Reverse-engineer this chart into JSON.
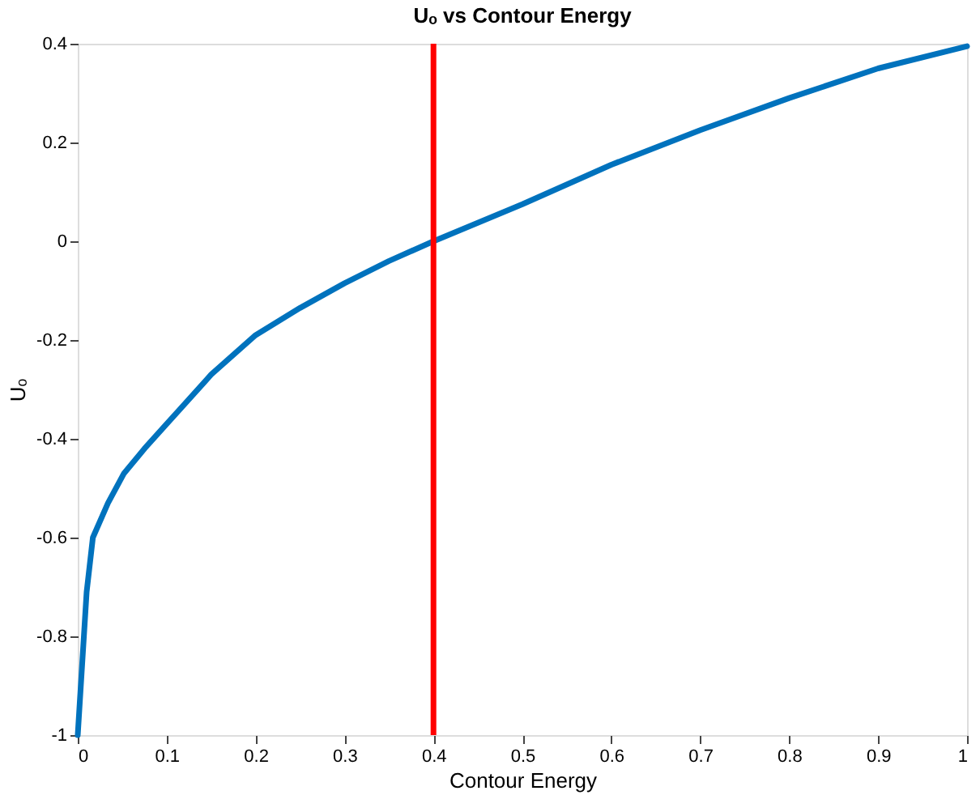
{
  "chart_data": {
    "type": "line",
    "title": "Uₒ vs Contour Energy",
    "xlabel": "Contour Energy",
    "ylabel": "Uₒ",
    "x": [
      0,
      0.01,
      0.017,
      0.034,
      0.052,
      0.075,
      0.1,
      0.15,
      0.2,
      0.25,
      0.3,
      0.35,
      0.4,
      0.5,
      0.6,
      0.7,
      0.8,
      0.9,
      1
    ],
    "series": [
      {
        "color": "#0072bd",
        "values": [
          -1,
          -0.71,
          -0.6,
          -0.53,
          -0.47,
          -0.42,
          -0.37,
          -0.27,
          -0.19,
          -0.135,
          -0.085,
          -0.04,
          0,
          0.075,
          0.155,
          0.225,
          0.29,
          0.35,
          0.395
        ]
      }
    ],
    "xlim": [
      0,
      1
    ],
    "xticks": [
      0,
      0.1,
      0.2,
      0.3,
      0.4,
      0.5,
      0.6,
      0.7,
      0.8,
      0.9,
      1
    ],
    "ylim": [
      -1,
      0.4
    ],
    "yticks": [
      -1,
      -0.8,
      -0.6,
      -0.4,
      -0.2,
      0,
      0.2,
      0.4
    ],
    "ref_lines": [
      {
        "axis": "x",
        "value": 0.4,
        "color": "#ff0000"
      }
    ],
    "grid": false,
    "marker": "none",
    "line_style": "solid"
  }
}
